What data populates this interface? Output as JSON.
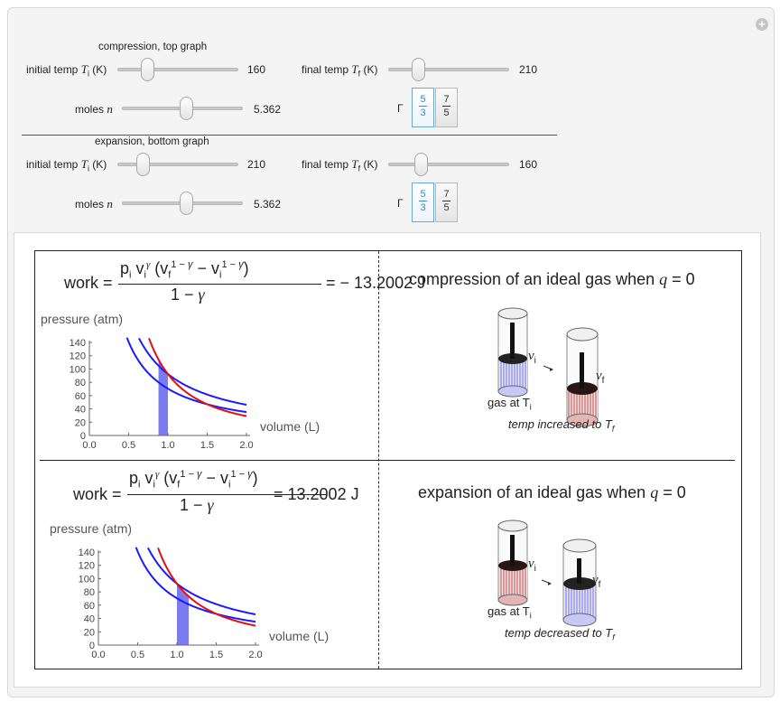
{
  "controls": {
    "compression": {
      "section_label": "compression, top graph",
      "initial_temp": {
        "label_pre": "initial temp ",
        "sym": "T",
        "sub": "i",
        "unit": " (K)",
        "value": "160",
        "fraction": 0.22
      },
      "final_temp": {
        "label_pre": "final temp ",
        "sym": "T",
        "sub": "f",
        "unit": " (K)",
        "value": "210",
        "fraction": 0.22
      },
      "moles": {
        "label_pre": "moles ",
        "sym": "n",
        "value": "5.362",
        "fraction": 0.54
      },
      "gamma": {
        "label": "Γ",
        "options": [
          {
            "num": "5",
            "den": "3",
            "selected": true
          },
          {
            "num": "7",
            "den": "5",
            "selected": false
          }
        ]
      }
    },
    "expansion": {
      "section_label": "expansion, bottom graph",
      "initial_temp": {
        "label_pre": "initial temp ",
        "sym": "T",
        "sub": "i",
        "unit": " (K)",
        "value": "210",
        "fraction": 0.18
      },
      "final_temp": {
        "label_pre": "final temp ",
        "sym": "T",
        "sub": "f",
        "unit": " (K)",
        "value": "160",
        "fraction": 0.24
      },
      "moles": {
        "label_pre": "moles ",
        "sym": "n",
        "value": "5.362",
        "fraction": 0.54
      },
      "gamma": {
        "label": "Γ",
        "options": [
          {
            "num": "5",
            "den": "3",
            "selected": true
          },
          {
            "num": "7",
            "den": "5",
            "selected": false
          }
        ]
      }
    }
  },
  "top": {
    "work_label": "work =",
    "work_result": "=  − 13.2002 J",
    "title_pre": "compression of an ideal gas when ",
    "title_var": "q",
    "title_post": " = 0",
    "illus_gas_label": "gas at T",
    "illus_gas_sub": "i",
    "illus_temp_label": "temp increased to T",
    "illus_temp_sub": "f",
    "illus_vi": "v",
    "illus_vi_sub": "i",
    "illus_vf": "v",
    "illus_vf_sub": "f"
  },
  "bottom": {
    "work_label": "work =",
    "work_result": "= 13.2002 J",
    "title_pre": "expansion of an ideal gas when ",
    "title_var": "q",
    "title_post": " = 0",
    "illus_gas_label": "gas at T",
    "illus_gas_sub": "i",
    "illus_temp_label": "temp decreased to T",
    "illus_temp_sub": "f",
    "illus_vi": "v",
    "illus_vi_sub": "i",
    "illus_vf": "v",
    "illus_vf_sub": "f"
  },
  "chart_data": [
    {
      "type": "line",
      "ylabel": "pressure (atm)",
      "xlabel": "volume (L)",
      "xlim": [
        0,
        2.0
      ],
      "ylim": [
        0,
        140
      ],
      "xticks": [
        "0.0",
        "0.5",
        "1.0",
        "1.5",
        "2.0"
      ],
      "yticks": [
        "0",
        "20",
        "40",
        "60",
        "80",
        "100",
        "120",
        "140"
      ],
      "series": [
        {
          "color": "#1a1aff",
          "kind": "isotherm",
          "k": 70.4,
          "p": 1
        },
        {
          "color": "#1a1aff",
          "kind": "isotherm",
          "k": 92.4,
          "p": 1
        },
        {
          "color": "#e01010",
          "kind": "adiabat",
          "k": 92.4,
          "p": 1.6667
        }
      ],
      "shaded_region": {
        "x": [
          0.88,
          1.0
        ],
        "color": "#7b7bf0"
      }
    },
    {
      "type": "line",
      "ylabel": "pressure (atm)",
      "xlabel": "volume (L)",
      "xlim": [
        0,
        2.0
      ],
      "ylim": [
        0,
        140
      ],
      "xticks": [
        "0.0",
        "0.5",
        "1.0",
        "1.5",
        "2.0"
      ],
      "yticks": [
        "0",
        "20",
        "40",
        "60",
        "80",
        "100",
        "120",
        "140"
      ],
      "series": [
        {
          "color": "#1a1aff",
          "kind": "isotherm",
          "k": 70.4,
          "p": 1
        },
        {
          "color": "#1a1aff",
          "kind": "isotherm",
          "k": 92.4,
          "p": 1
        },
        {
          "color": "#e01010",
          "kind": "adiabat",
          "k": 92.4,
          "p": 1.6667
        }
      ],
      "shaded_region": {
        "x": [
          1.0,
          1.15
        ],
        "color": "#7b7bf0"
      }
    }
  ]
}
